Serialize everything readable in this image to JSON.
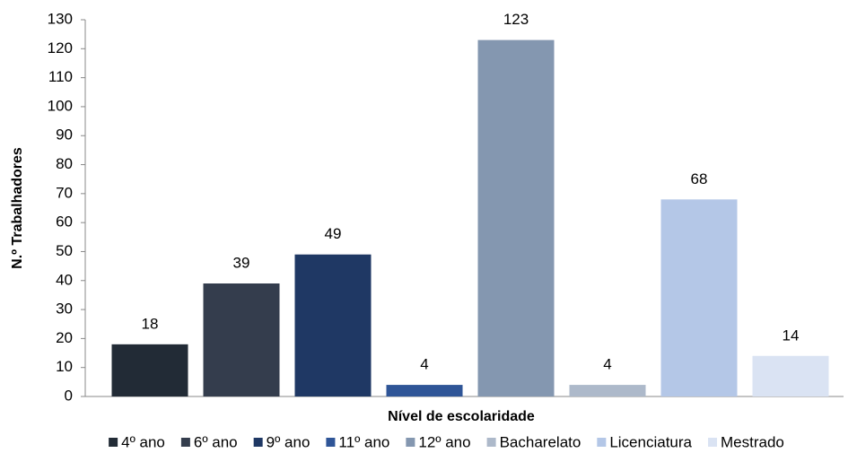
{
  "chart_data": {
    "type": "bar",
    "xlabel": "Nível de escolaridade",
    "ylabel": "N.º Trabalhadores",
    "categories": [
      "4º ano",
      "6º ano",
      "9º ano",
      "11º ano",
      "12º ano",
      "Bacharelato",
      "Licenciatura",
      "Mestrado"
    ],
    "values": [
      18,
      39,
      49,
      4,
      123,
      4,
      68,
      14
    ],
    "colors": [
      "#222b36",
      "#343d4d",
      "#1f3864",
      "#2f5597",
      "#8497b0",
      "#adb9ca",
      "#b4c7e7",
      "#dae3f3"
    ],
    "ylim": [
      0,
      130
    ],
    "yticks": [
      0,
      10,
      20,
      30,
      40,
      50,
      60,
      70,
      80,
      90,
      100,
      110,
      120,
      130
    ],
    "legend": "bottom"
  }
}
